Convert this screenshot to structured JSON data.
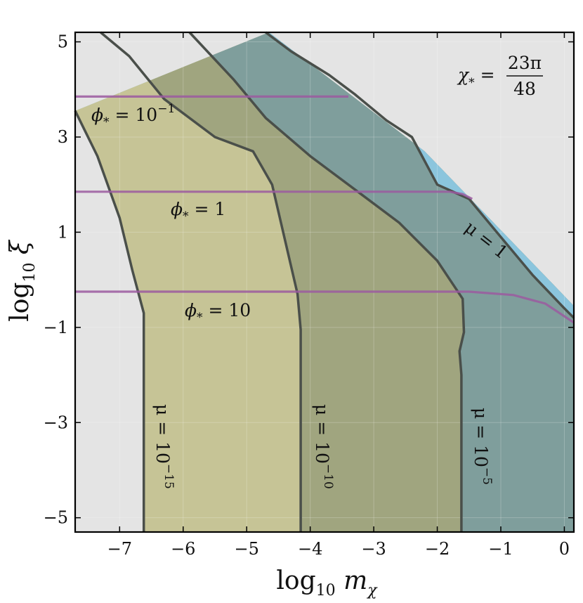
{
  "chart_data": {
    "type": "area",
    "xlabel_main": "log",
    "xlabel_sub": "10",
    "xlabel_var": "m",
    "xlabel_var_sub": "χ",
    "ylabel_main": "log",
    "ylabel_sub": "10",
    "ylabel_var": "ξ",
    "xlim": [
      -7.7,
      0.15
    ],
    "ylim": [
      -5.3,
      5.2
    ],
    "xticks": [
      -7,
      -6,
      -5,
      -4,
      -3,
      -2,
      -1,
      0
    ],
    "xtick_labels": [
      "−7",
      "−6",
      "−5",
      "−4",
      "−3",
      "−2",
      "−1",
      "0"
    ],
    "yticks": [
      -5,
      -3,
      -1,
      1,
      3,
      5
    ],
    "ytick_labels": [
      "−5",
      "−3",
      "−1",
      "1",
      "3",
      "5"
    ],
    "grid": true,
    "colors": {
      "background_region": "#e4e4e4",
      "mu_1e-15_region": "#c6c496",
      "mu_1e-10_region": "#a0a57f",
      "mu_1e-5_region": "#7f9e9c",
      "mu_1_region": "#8bc5dd",
      "boundary_line": "#4a4f4a",
      "phi_line": "#9b5aa0"
    },
    "annotation_chi": {
      "lhs": "χ",
      "lhs_sub": "*",
      "eq": "=",
      "numerator": "23π",
      "denominator": "48"
    },
    "mu_curves": [
      {
        "label_base": "μ = 10",
        "label_exp": "−15",
        "points": [
          [
            -7.7,
            3.55
          ],
          [
            -7.35,
            2.6
          ],
          [
            -7.0,
            1.3
          ],
          [
            -6.8,
            0.2
          ],
          [
            -6.62,
            -0.7
          ],
          [
            -6.62,
            -5.3
          ]
        ]
      },
      {
        "label_base": "μ = 10",
        "label_exp": "−10",
        "points": [
          [
            -7.3,
            5.2
          ],
          [
            -6.85,
            4.7
          ],
          [
            -6.3,
            3.8
          ],
          [
            -5.5,
            3.0
          ],
          [
            -4.9,
            2.7
          ],
          [
            -4.6,
            2.0
          ],
          [
            -4.2,
            -0.3
          ],
          [
            -4.15,
            -1.05
          ],
          [
            -4.15,
            -5.3
          ]
        ]
      },
      {
        "label_base": "μ = 10",
        "label_exp": "−5",
        "points": [
          [
            -5.9,
            5.2
          ],
          [
            -5.2,
            4.2
          ],
          [
            -4.7,
            3.4
          ],
          [
            -4.0,
            2.6
          ],
          [
            -3.2,
            1.8
          ],
          [
            -2.6,
            1.2
          ],
          [
            -2.0,
            0.4
          ],
          [
            -1.6,
            -0.4
          ],
          [
            -1.58,
            -1.1
          ],
          [
            -1.65,
            -1.5
          ],
          [
            -1.62,
            -2.0
          ],
          [
            -1.62,
            -5.3
          ]
        ]
      },
      {
        "label_base": "μ = 1",
        "label_exp": "",
        "points": [
          [
            -4.7,
            5.2
          ],
          [
            -4.3,
            4.8
          ],
          [
            -3.7,
            4.3
          ],
          [
            -3.3,
            3.9
          ],
          [
            -2.8,
            3.35
          ],
          [
            -2.4,
            3.0
          ],
          [
            -2.0,
            2.0
          ],
          [
            -1.5,
            1.7
          ],
          [
            -1.0,
            0.9
          ],
          [
            -0.5,
            0.1
          ],
          [
            0.0,
            -0.6
          ],
          [
            0.15,
            -0.8
          ]
        ]
      }
    ],
    "envelope": [
      [
        -4.65,
        5.2
      ],
      [
        -2.2,
        2.7
      ],
      [
        -0.1,
        -0.2
      ],
      [
        0.15,
        -0.55
      ]
    ],
    "phi_curves": [
      {
        "label_base": "ϕ",
        "label_sub": "*",
        "label_rhs": " = 10",
        "label_exp": "−1",
        "points": [
          [
            -7.7,
            3.85
          ],
          [
            -3.4,
            3.85
          ]
        ]
      },
      {
        "label_base": "ϕ",
        "label_sub": "*",
        "label_rhs": " = 1",
        "label_exp": "",
        "points": [
          [
            -7.7,
            1.85
          ],
          [
            -1.8,
            1.85
          ],
          [
            -1.6,
            1.8
          ],
          [
            -1.45,
            1.7
          ]
        ]
      },
      {
        "label_base": "ϕ",
        "label_sub": "*",
        "label_rhs": " = 10",
        "label_exp": "",
        "points": [
          [
            -7.7,
            -0.25
          ],
          [
            -1.5,
            -0.25
          ],
          [
            -0.8,
            -0.32
          ],
          [
            -0.3,
            -0.5
          ],
          [
            0.15,
            -0.9
          ]
        ]
      }
    ]
  }
}
